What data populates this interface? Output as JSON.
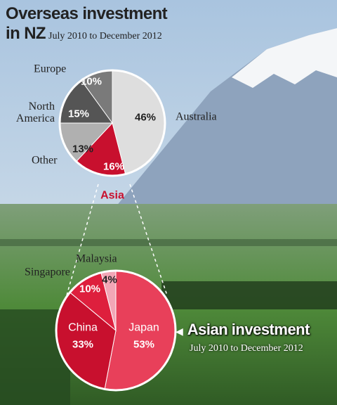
{
  "chart_data": [
    {
      "type": "pie",
      "title": "Overseas investment in NZ",
      "subtitle": "July 2010 to December 2012",
      "categories": [
        "Australia",
        "Asia",
        "Other",
        "North America",
        "Europe"
      ],
      "values": [
        46,
        16,
        13,
        15,
        10
      ],
      "value_labels": [
        "46%",
        "16%",
        "13%",
        "15%",
        "10%"
      ],
      "colors": [
        "#dedede",
        "#c8102e",
        "#b0b0b0",
        "#555555",
        "#7a7a7a"
      ]
    },
    {
      "type": "pie",
      "title": "Asian investment",
      "subtitle": "July 2010 to December 2012",
      "categories": [
        "Japan",
        "China",
        "Singapore",
        "Malaysia"
      ],
      "values": [
        53,
        33,
        10,
        4
      ],
      "value_labels": [
        "53%",
        "33%",
        "10%",
        "4%"
      ],
      "colors": [
        "#e8405a",
        "#c8102e",
        "#de1f3d",
        "#f2a6b6"
      ]
    }
  ]
}
